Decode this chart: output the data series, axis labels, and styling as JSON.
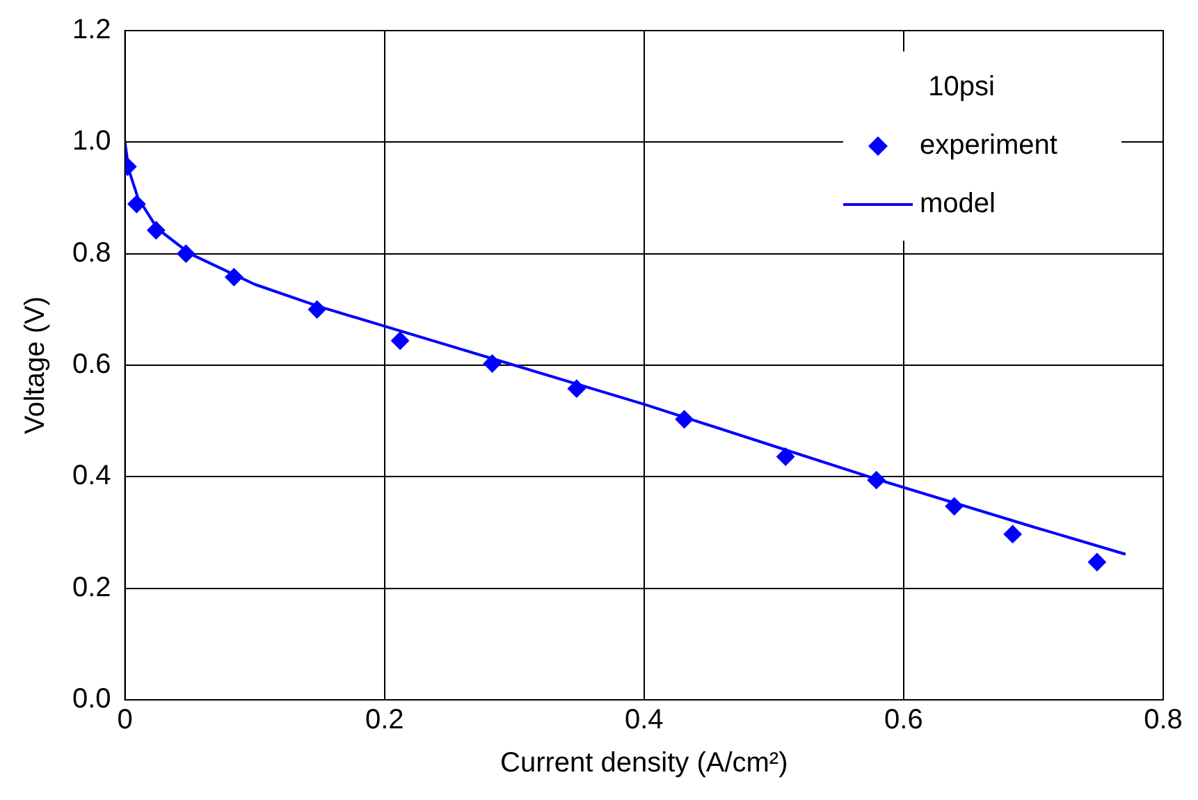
{
  "chart_data": {
    "type": "scatter",
    "xlabel": "Current density (A/cm²)",
    "ylabel": "Voltage (V)",
    "legend_title": "10psi",
    "legend": "top right",
    "grid": true,
    "marker": "diamond",
    "xlim": [
      0,
      0.8
    ],
    "xticks": [
      0,
      0.2,
      0.4,
      0.6,
      0.8
    ],
    "ylim": [
      0,
      1.2
    ],
    "yticks": [
      {
        "value": 0,
        "label": "0.0"
      },
      {
        "value": 0.2,
        "label": "0.2"
      },
      {
        "value": 0.4,
        "label": "0.4"
      },
      {
        "value": 0.6,
        "label": "0.6"
      },
      {
        "value": 0.8,
        "label": "0.8"
      },
      {
        "value": 1.0,
        "label": "1.0"
      },
      {
        "value": 1.2,
        "label": "1.2"
      }
    ],
    "series": [
      {
        "name": "experiment",
        "color": "#0000ff",
        "x": [
          0.002,
          0.009,
          0.024,
          0.047,
          0.084,
          0.148,
          0.212,
          0.283,
          0.348,
          0.431,
          0.509,
          0.579,
          0.639,
          0.684,
          0.749
        ],
        "values": [
          0.956,
          0.889,
          0.842,
          0.8,
          0.758,
          0.7,
          0.644,
          0.603,
          0.558,
          0.503,
          0.436,
          0.394,
          0.347,
          0.297,
          0.247
        ]
      },
      {
        "name": "model",
        "type": "line",
        "marker": "none",
        "color": "#0000ff",
        "x": [
          0,
          0.003,
          0.01,
          0.025,
          0.05,
          0.1,
          0.15,
          0.2,
          0.3,
          0.4,
          0.5,
          0.58,
          0.7,
          0.771
        ],
        "values": [
          1.0,
          0.95,
          0.9,
          0.845,
          0.8,
          0.745,
          0.705,
          0.67,
          0.6,
          0.53,
          0.455,
          0.395,
          0.31,
          0.261
        ]
      }
    ]
  }
}
